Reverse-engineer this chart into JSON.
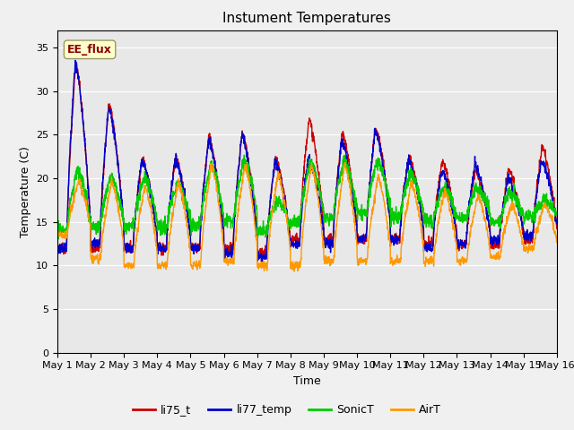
{
  "title": "Instument Temperatures",
  "xlabel": "Time",
  "ylabel": "Temperature (C)",
  "ylim": [
    0,
    37
  ],
  "yticks": [
    0,
    5,
    10,
    15,
    20,
    25,
    30,
    35
  ],
  "legend_labels": [
    "li75_t",
    "li77_temp",
    "SonicT",
    "AirT"
  ],
  "legend_colors": [
    "#cc0000",
    "#0000cc",
    "#00cc00",
    "#ff9900"
  ],
  "annotation_text": "EE_flux",
  "background_color": "#e8e8e8",
  "title_fontsize": 11,
  "axis_label_fontsize": 9,
  "tick_fontsize": 8,
  "n_days": 15,
  "pts_per_day": 144,
  "line_width": 1.0,
  "fig_facecolor": "#f0f0f0"
}
